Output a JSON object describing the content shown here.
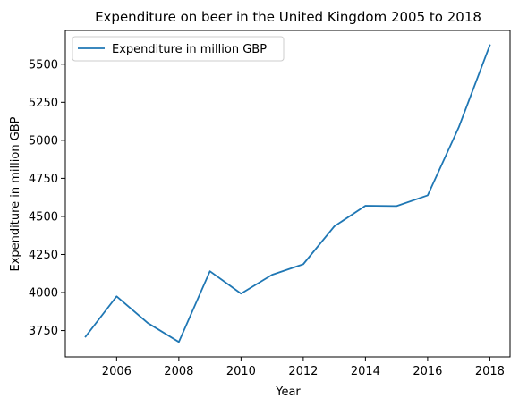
{
  "chart_data": {
    "type": "line",
    "title": "Expenditure on beer in the United Kingdom 2005 to 2018",
    "xlabel": "Year",
    "ylabel": "Expenditure in million GBP",
    "x": [
      2005,
      2006,
      2007,
      2008,
      2009,
      2010,
      2011,
      2012,
      2013,
      2014,
      2015,
      2016,
      2017,
      2018
    ],
    "series": [
      {
        "name": "Expenditure in million GBP",
        "color": "#1f77b4",
        "values": [
          3710,
          3975,
          3800,
          3675,
          4140,
          3993,
          4117,
          4186,
          4435,
          4570,
          4568,
          4638,
          5085,
          5625
        ]
      }
    ],
    "xticks": [
      2006,
      2008,
      2010,
      2012,
      2014,
      2016,
      2018
    ],
    "yticks": [
      3750,
      4000,
      4250,
      4500,
      4750,
      5000,
      5250,
      5500
    ],
    "xlim": [
      2004.35,
      2018.65
    ],
    "ylim": [
      3577,
      5722
    ],
    "grid": false,
    "legend_position": "upper-left"
  }
}
